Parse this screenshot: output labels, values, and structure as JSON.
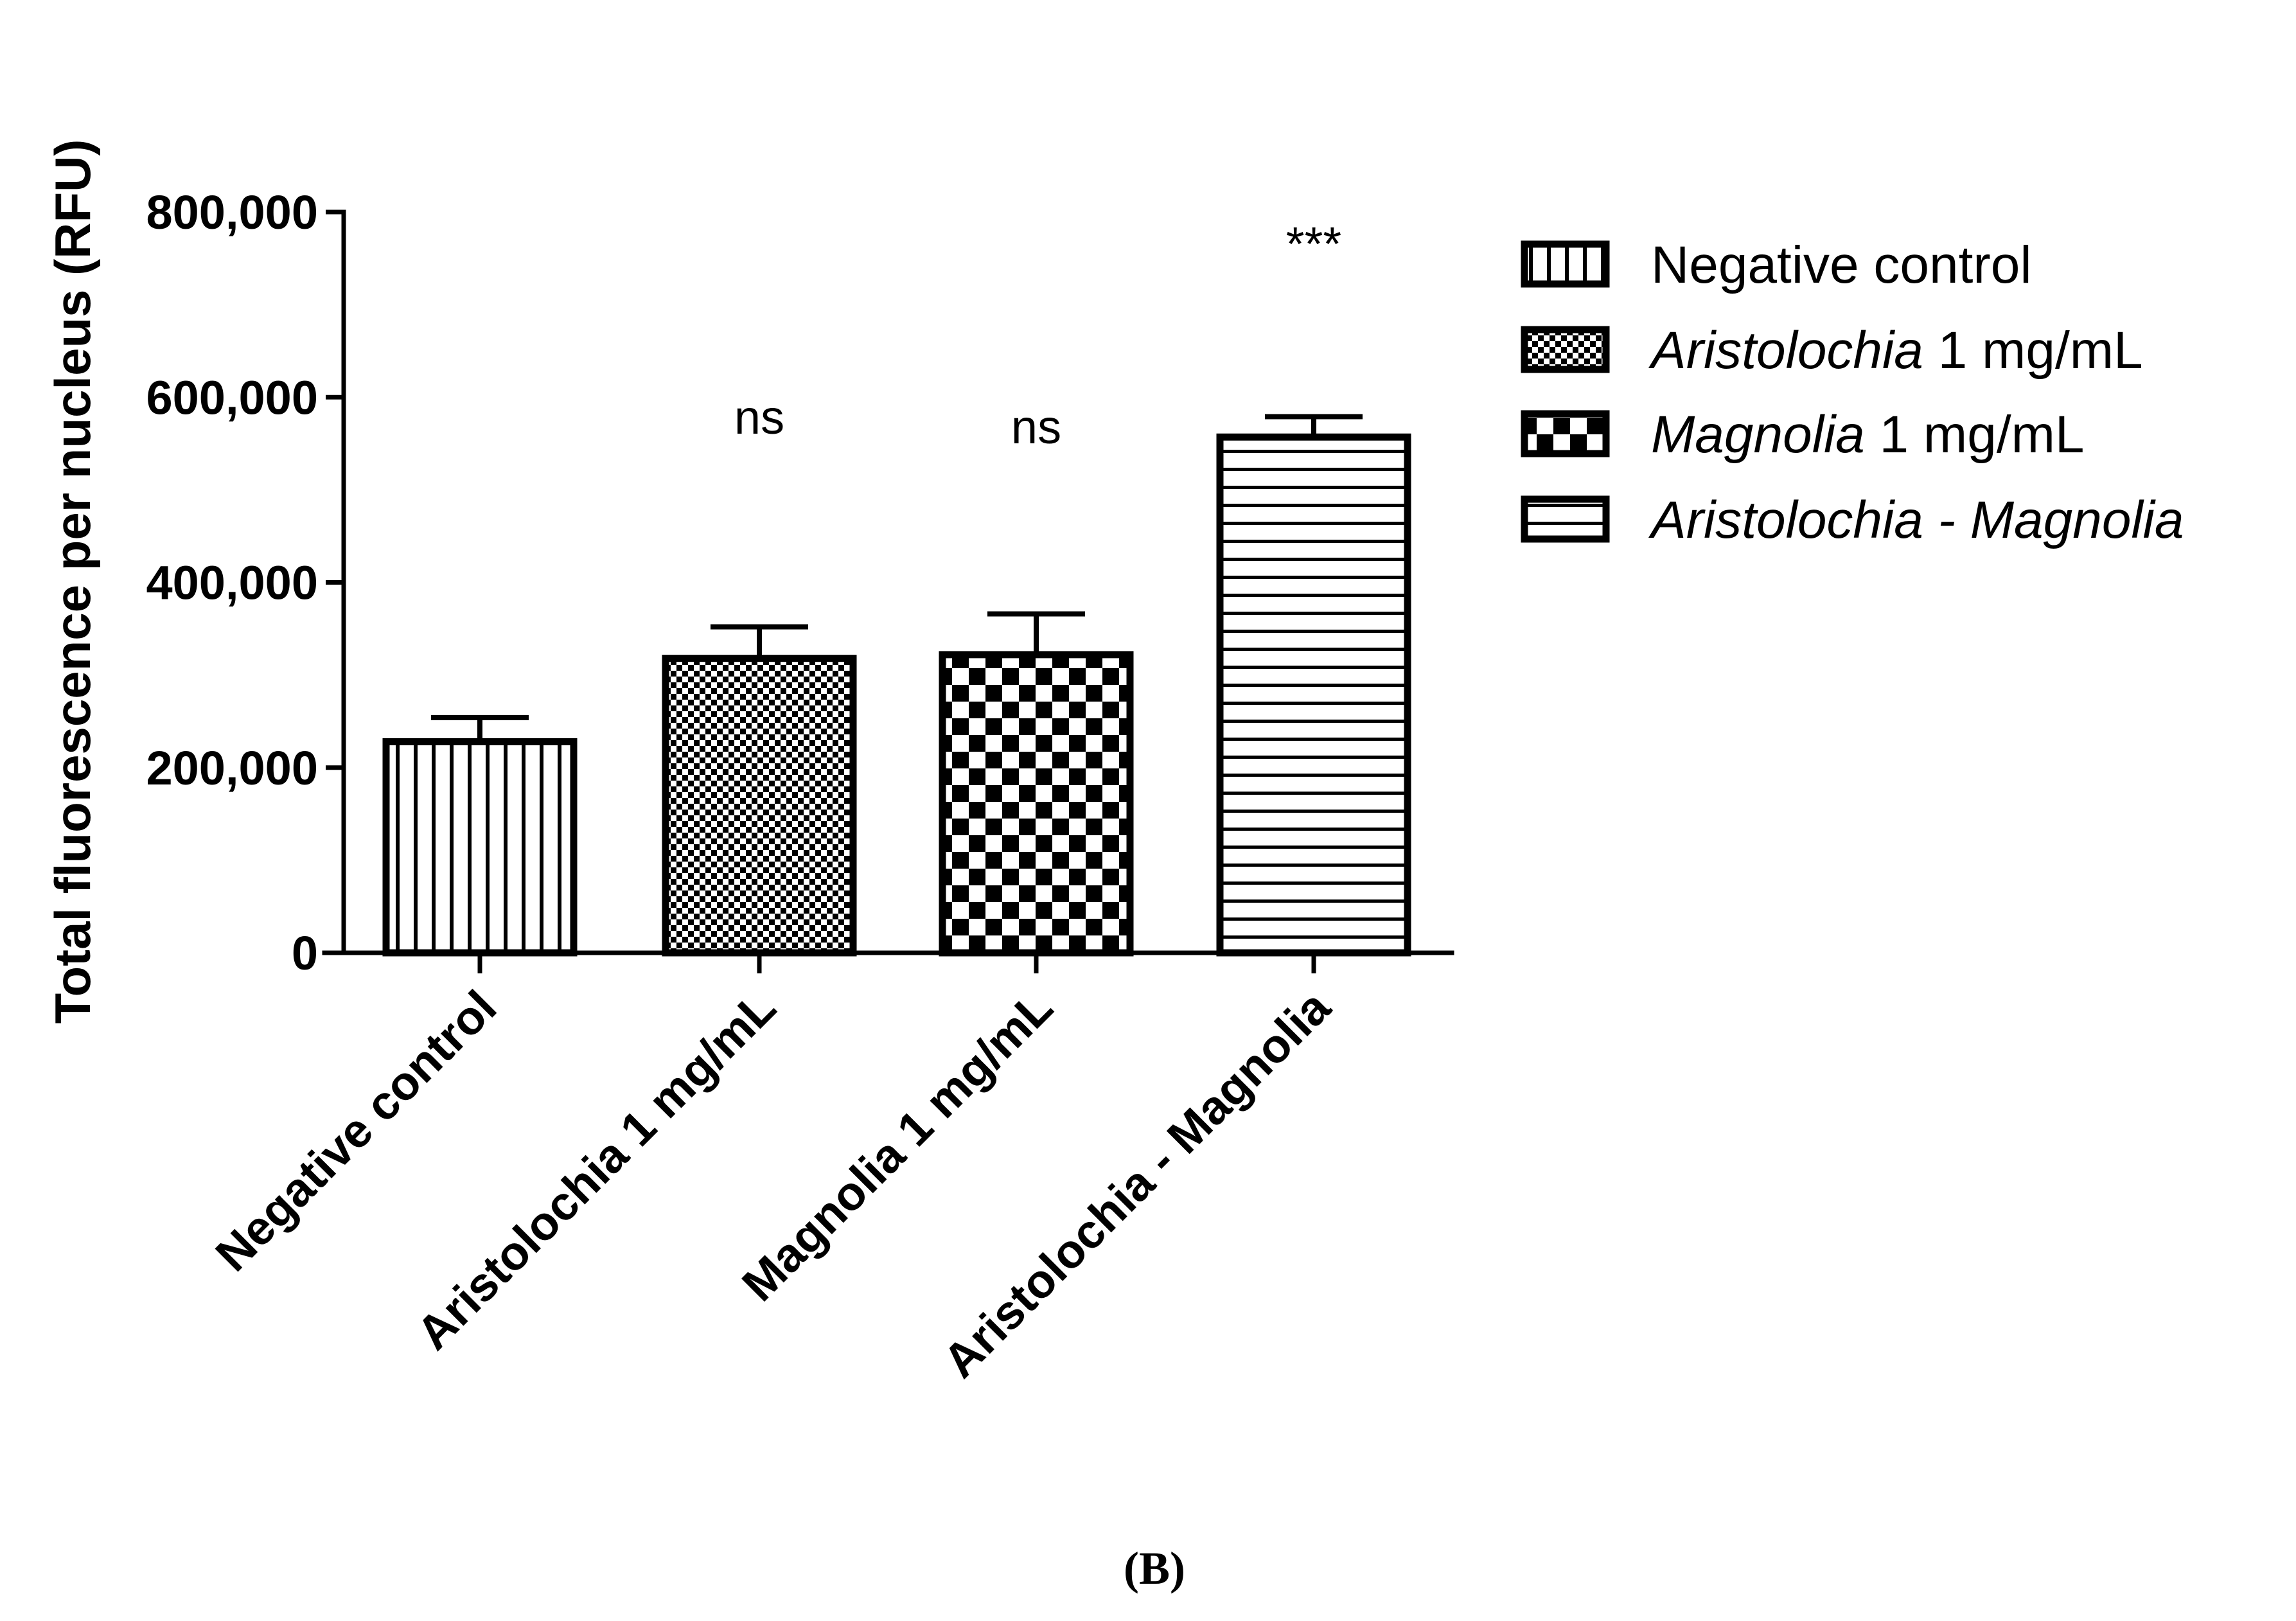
{
  "chart_data": {
    "type": "bar",
    "title": "",
    "xlabel": "",
    "ylabel": "Total fluorescence per nucleus (RFU)",
    "ylim": [
      0,
      800000
    ],
    "yticks": [
      0,
      200000,
      400000,
      600000,
      800000
    ],
    "ytick_labels": [
      "0",
      "200,000",
      "400,000",
      "600,000",
      "800,000"
    ],
    "categories": [
      "Negative control",
      "Aristolochia 1 mg/mL",
      "Magnolia 1 mg/mL",
      "Aristolochia - Magnolia"
    ],
    "values": [
      228000,
      318000,
      322000,
      557000
    ],
    "errors": [
      26000,
      34000,
      44000,
      22000
    ],
    "significance": [
      "",
      "ns",
      "ns",
      "***"
    ],
    "patterns": [
      "vertical-lines",
      "fine-checker",
      "coarse-checker",
      "horizontal-lines"
    ],
    "legend": {
      "position": "right",
      "entries": [
        {
          "italic": "",
          "text": "Negative control"
        },
        {
          "italic": "Aristolochia",
          "text": " 1 mg/mL"
        },
        {
          "italic": "Magnolia",
          "text": " 1 mg/mL"
        },
        {
          "italic": "Aristolochia - Magnolia",
          "text": ""
        }
      ]
    }
  },
  "caption": "(B)",
  "colors": {
    "ink": "#000000",
    "background": "#ffffff"
  }
}
